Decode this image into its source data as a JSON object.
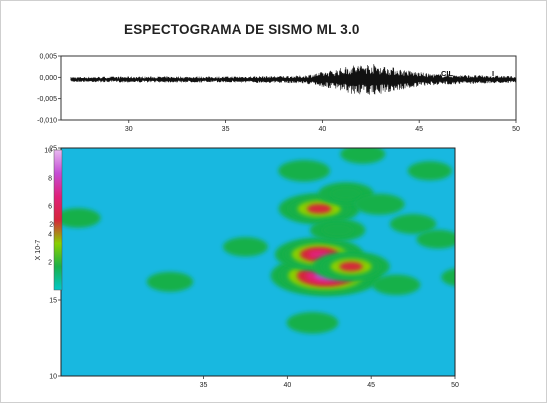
{
  "chart_data": [
    {
      "type": "line",
      "title": "ESPECTOGRAMA  DE SISMO ML 3.0",
      "xlabel": "",
      "ylabel": "",
      "xlim": [
        26.5,
        50
      ],
      "ylim": [
        -0.01,
        0.005
      ],
      "x_ticks": [
        "30",
        "35",
        "40",
        "45",
        "50"
      ],
      "y_ticks": [
        "0,005",
        "0,000",
        "-0,005",
        "-0,010"
      ],
      "annotations": [
        "CIL",
        "I"
      ],
      "series": [
        {
          "envelope": [
            {
              "x": 27.0,
              "amp": 0.0006
            },
            {
              "x": 30.0,
              "amp": 0.0007
            },
            {
              "x": 35.0,
              "amp": 0.0007
            },
            {
              "x": 39.0,
              "amp": 0.0009
            },
            {
              "x": 40.5,
              "amp": 0.0022
            },
            {
              "x": 41.5,
              "amp": 0.0034
            },
            {
              "x": 42.5,
              "amp": 0.0038
            },
            {
              "x": 43.5,
              "amp": 0.003
            },
            {
              "x": 44.5,
              "amp": 0.0021
            },
            {
              "x": 45.5,
              "amp": 0.0014
            },
            {
              "x": 47.0,
              "amp": 0.0011
            },
            {
              "x": 49.0,
              "amp": 0.0009
            },
            {
              "x": 50.0,
              "amp": 0.0008
            }
          ]
        }
      ]
    },
    {
      "type": "heatmap",
      "title": "",
      "xlabel": "",
      "ylabel": "",
      "xlim": [
        26.5,
        50
      ],
      "ylim": [
        10,
        25
      ],
      "x_ticks": [
        "35",
        "40",
        "45",
        "50"
      ],
      "y_ticks": [
        "25",
        "20",
        "15",
        "10"
      ],
      "colorbar": {
        "label": "X 10-7",
        "min": 0,
        "max": 10,
        "ticks": [
          "10",
          "8",
          "6",
          "4",
          "2"
        ],
        "stops": [
          "#00c8c8",
          "#19b04a",
          "#8ad000",
          "#d6263a",
          "#e0207a",
          "#c44cd4",
          "#e8b8f0"
        ]
      },
      "background_color": "#18b8e0",
      "blobs": [
        {
          "x": 42.3,
          "y": 16.6,
          "value": 10.0
        },
        {
          "x": 41.9,
          "y": 18.0,
          "value": 7.0
        },
        {
          "x": 41.9,
          "y": 21.0,
          "value": 6.0
        },
        {
          "x": 43.8,
          "y": 17.2,
          "value": 5.5
        },
        {
          "x": 43.0,
          "y": 19.6,
          "value": 2.5
        },
        {
          "x": 43.5,
          "y": 22.0,
          "value": 2.5
        },
        {
          "x": 41.0,
          "y": 23.5,
          "value": 2.0
        },
        {
          "x": 41.5,
          "y": 13.5,
          "value": 2.0
        },
        {
          "x": 45.5,
          "y": 21.3,
          "value": 1.8
        },
        {
          "x": 46.5,
          "y": 16.0,
          "value": 1.5
        },
        {
          "x": 47.5,
          "y": 20.0,
          "value": 1.3
        },
        {
          "x": 33.0,
          "y": 16.2,
          "value": 1.3
        },
        {
          "x": 27.5,
          "y": 20.4,
          "value": 1.2
        },
        {
          "x": 37.5,
          "y": 18.5,
          "value": 1.1
        },
        {
          "x": 44.5,
          "y": 24.6,
          "value": 1.1
        },
        {
          "x": 48.5,
          "y": 23.5,
          "value": 1.0
        },
        {
          "x": 50.5,
          "y": 16.5,
          "value": 1.0
        },
        {
          "x": 49.0,
          "y": 19.0,
          "value": 0.9
        }
      ]
    }
  ]
}
